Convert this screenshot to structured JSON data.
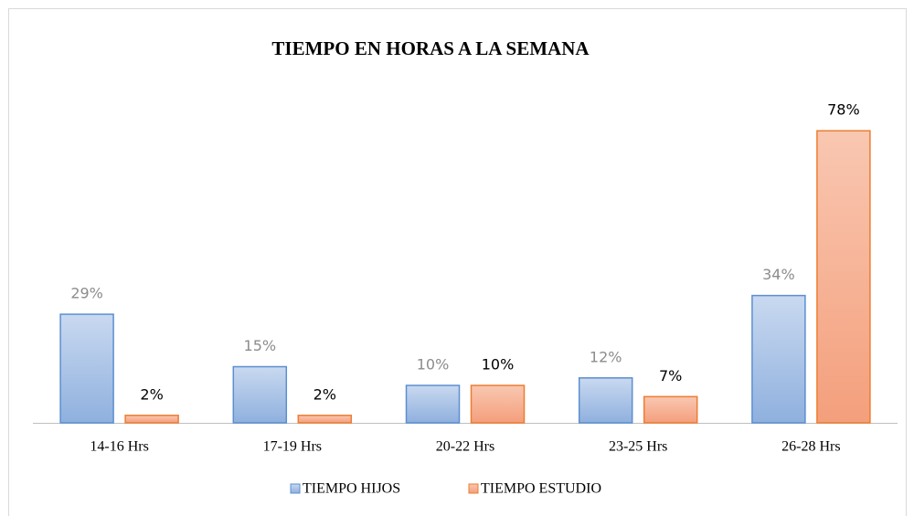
{
  "chart_data": {
    "type": "bar",
    "title": "TIEMPO EN  HORAS A LA SEMANA",
    "categories": [
      "14-16 Hrs",
      "17-19 Hrs",
      "20-22 Hrs",
      "23-25 Hrs",
      "26-28 Hrs"
    ],
    "series": [
      {
        "name": "TIEMPO HIJOS",
        "color": "#5b8fd0",
        "label_color": "#8c8c8c",
        "values": [
          29,
          15,
          10,
          12,
          34
        ],
        "value_labels": [
          "29%",
          "15%",
          "10%",
          "12%",
          "34%"
        ]
      },
      {
        "name": "TIEMPO ESTUDIO",
        "color": "#ed7d31",
        "label_color": "#000000",
        "values": [
          2,
          2,
          10,
          7,
          78
        ],
        "value_labels": [
          "2%",
          "2%",
          "10%",
          "7%",
          "78%"
        ]
      }
    ],
    "legend": "bottom"
  }
}
